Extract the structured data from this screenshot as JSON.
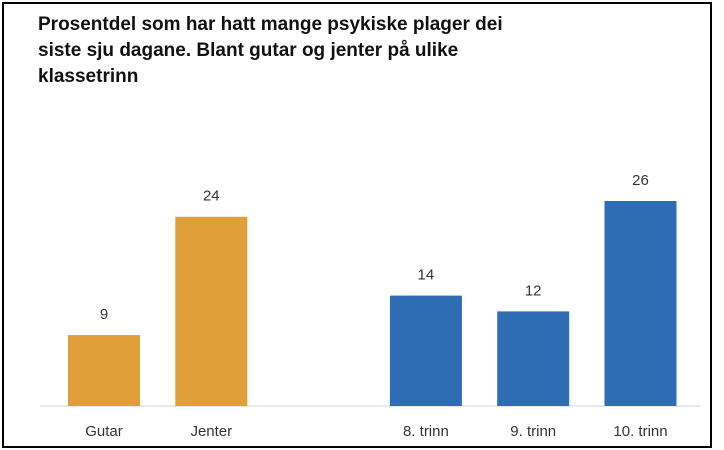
{
  "chart_data": {
    "type": "bar",
    "title": [
      "Prosentdel som har hatt mange psykiske plager dei",
      "siste sju dagane. Blant gutar og jenter på ulike",
      "klassetrinn"
    ],
    "categories": [
      "Gutar",
      "Jenter",
      "8. trinn",
      "9. trinn",
      "10. trinn"
    ],
    "values": [
      9,
      24,
      14,
      12,
      26
    ],
    "colors": [
      "#E0A039",
      "#E0A039",
      "#2E6DB4",
      "#2E6DB4",
      "#2E6DB4"
    ]
  }
}
